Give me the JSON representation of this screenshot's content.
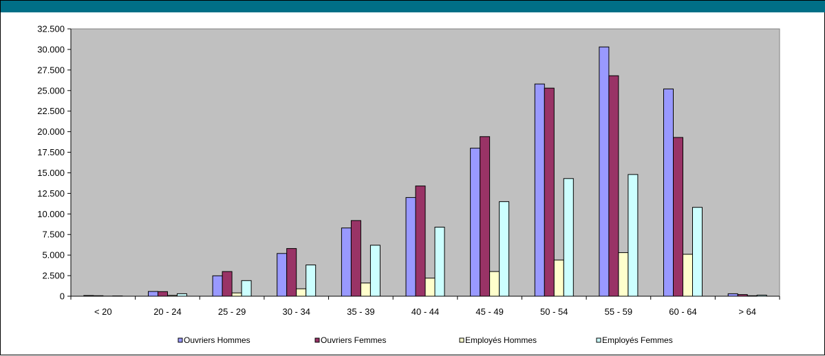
{
  "header": {
    "title": "",
    "bar_color": "#006f87"
  },
  "chart_data": {
    "type": "bar",
    "title": "",
    "xlabel": "",
    "ylabel": "",
    "categories": [
      "< 20",
      "20 - 24",
      "25 - 29",
      "30 - 34",
      "35 - 39",
      "40 - 44",
      "45 - 49",
      "50 - 54",
      "55 - 59",
      "60 - 64",
      "> 64"
    ],
    "ylim": [
      0,
      32500
    ],
    "yticks": [
      0,
      2500,
      5000,
      7500,
      10000,
      12500,
      15000,
      17500,
      20000,
      22500,
      25000,
      27500,
      30000,
      32500
    ],
    "ytick_labels": [
      "0",
      "2.500",
      "5.000",
      "7.500",
      "10.000",
      "12.500",
      "15.000",
      "17.500",
      "20.000",
      "22.500",
      "25.000",
      "27.500",
      "30.000",
      "32.500"
    ],
    "plot_background": "#c0c0c0",
    "grid": false,
    "legend_position": "bottom",
    "series": [
      {
        "name": "Ouvriers Hommes",
        "color": "#9999ff",
        "values": [
          80,
          580,
          2480,
          5200,
          8300,
          12000,
          18000,
          25800,
          30300,
          25200,
          300
        ]
      },
      {
        "name": "Ouvriers Femmes",
        "color": "#993366",
        "values": [
          60,
          560,
          3000,
          5800,
          9200,
          13400,
          19400,
          25300,
          26800,
          19300,
          200
        ]
      },
      {
        "name": "Employés Hommes",
        "color": "#ffffcc",
        "values": [
          10,
          100,
          400,
          900,
          1600,
          2200,
          3000,
          4400,
          5300,
          5100,
          60
        ]
      },
      {
        "name": "Employés Femmes",
        "color": "#ccffff",
        "values": [
          30,
          300,
          1900,
          3800,
          6200,
          8400,
          11500,
          14300,
          14800,
          10800,
          130
        ]
      }
    ]
  }
}
